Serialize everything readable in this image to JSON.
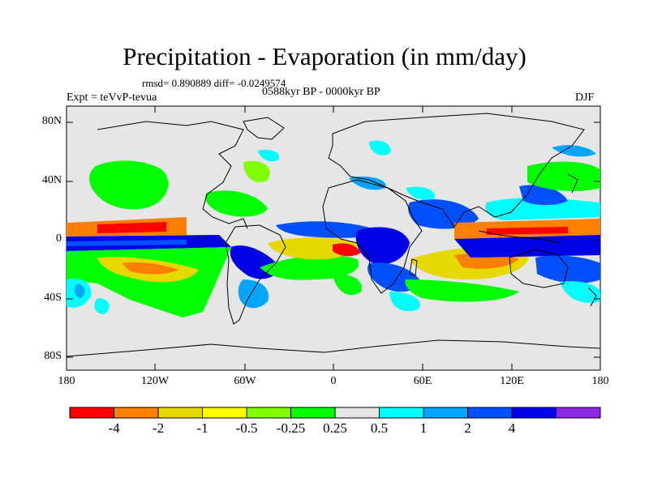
{
  "title": "Precipitation - Evaporation (in mm/day)",
  "stats": "rmsd= 0.890889 diff= -0.0249574",
  "experiment": "Expt = teVvP-tevua",
  "period": "0588kyr BP - 0000kyr BP",
  "season": "DJF",
  "lat_labels": [
    "80N",
    "40N",
    "0",
    "40S",
    "80S"
  ],
  "lon_labels": [
    "180",
    "120W",
    "60W",
    "0",
    "60E",
    "120E",
    "180"
  ],
  "colorbar": {
    "colors": [
      "#ff0000",
      "#ff8000",
      "#e6d800",
      "#ffff00",
      "#7fff00",
      "#00ff00",
      "#e6e6e6",
      "#00ffff",
      "#00a6ff",
      "#0050ff",
      "#0000e6",
      "#8a2be2"
    ],
    "labels": [
      "-4",
      "-2",
      "-1",
      "-0.5",
      "-0.25",
      "0.25",
      "0.5",
      "1",
      "2",
      "4"
    ]
  },
  "colors": {
    "background": "#e6e6e6",
    "coast": "#000000"
  }
}
